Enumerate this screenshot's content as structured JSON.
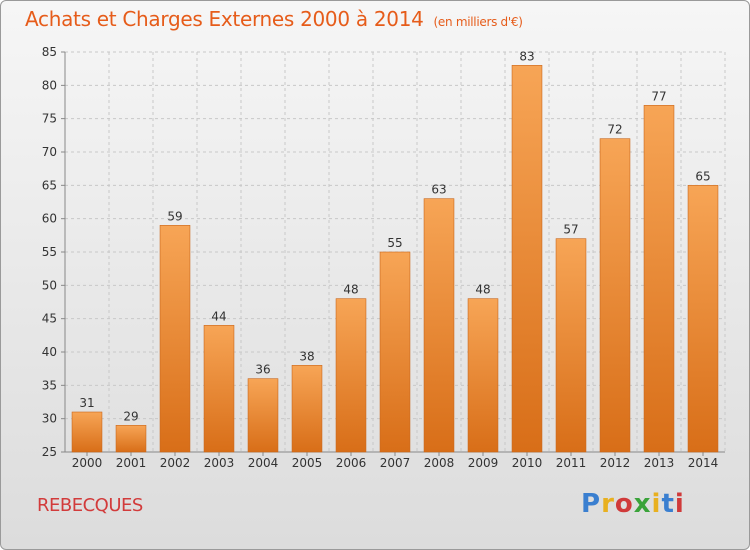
{
  "header": {
    "title": "Achats et Charges Externes 2000 à 2014",
    "subtitle": "(en milliers d'€)"
  },
  "footer": {
    "location": "REBECQUES",
    "brand": [
      "P",
      "r",
      "o",
      "x",
      "i",
      "t",
      "i"
    ],
    "brand_colors": [
      "#3a7fd0",
      "#e8b020",
      "#d03a3a",
      "#3aa33a",
      "#e8b020",
      "#3a7fd0",
      "#d03a3a"
    ]
  },
  "chart_data": {
    "type": "bar",
    "categories": [
      "2000",
      "2001",
      "2002",
      "2003",
      "2004",
      "2005",
      "2006",
      "2007",
      "2008",
      "2009",
      "2010",
      "2011",
      "2012",
      "2013",
      "2014"
    ],
    "values": [
      31,
      29,
      59,
      44,
      36,
      38,
      48,
      55,
      63,
      48,
      83,
      57,
      72,
      77,
      65
    ],
    "ylim": [
      25,
      85
    ],
    "yticks": [
      25,
      30,
      35,
      40,
      45,
      50,
      55,
      60,
      65,
      70,
      75,
      80,
      85
    ],
    "grid": true,
    "colors": {
      "bar_top": "#f7a556",
      "bar_bottom": "#d86e18",
      "grid": "#c8c8c8"
    }
  }
}
